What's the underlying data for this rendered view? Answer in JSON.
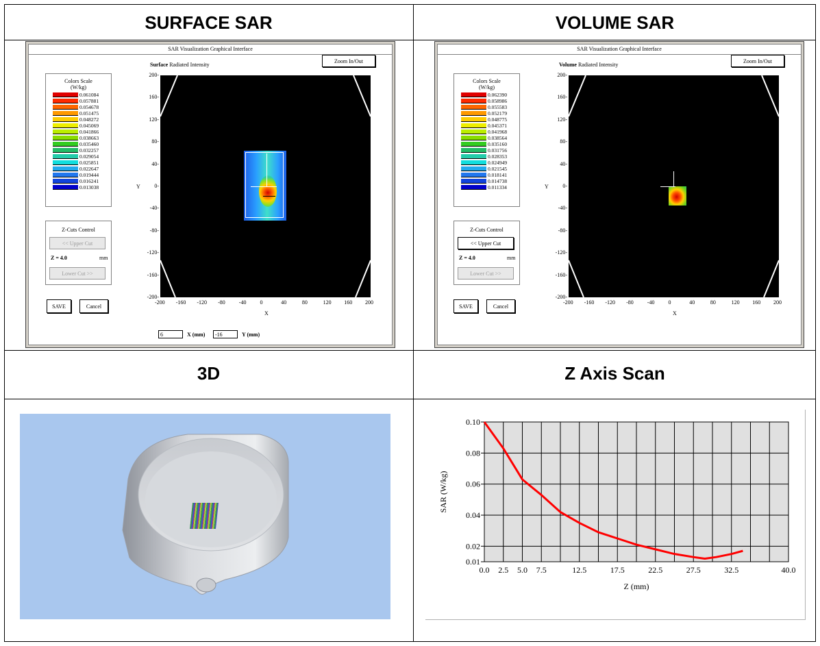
{
  "cells": {
    "surface_title": "SURFACE SAR",
    "volume_title": "VOLUME SAR",
    "three_d_title": "3D",
    "zscan_title": "Z Axis Scan"
  },
  "surface": {
    "window_title": "SAR Visualization Graphical Interface",
    "plot_label_bold": "Surface",
    "plot_label": "Radiated Intensity",
    "zoom_button": "Zoom In/Out",
    "colors_scale_title": "Colors Scale",
    "colors_scale_unit": "(W/kg)",
    "scale_values": [
      "0.061084",
      "0.057881",
      "0.054678",
      "0.051475",
      "0.048272",
      "0.045069",
      "0.041866",
      "0.038663",
      "0.035460",
      "0.032257",
      "0.029054",
      "0.025851",
      "0.022647",
      "0.019444",
      "0.016241",
      "0.013038"
    ],
    "zcuts_title": "Z-Cuts Control",
    "upper_cut": "<< Upper Cut",
    "z_label": "Z = 4.0",
    "z_unit": "mm",
    "lower_cut": "Lower Cut >>",
    "save": "SAVE",
    "cancel": "Cancel",
    "x_value": "6",
    "x_label": "X (mm)",
    "y_value": "-16",
    "y_label": "Y (mm)",
    "x_axis": "X",
    "y_axis": "Y"
  },
  "volume": {
    "window_title": "SAR Visualization Graphical Interface",
    "plot_label_bold": "Volume",
    "plot_label": "Radiated Intensity",
    "zoom_button": "Zoom In/Out",
    "colors_scale_title": "Colors Scale",
    "colors_scale_unit": "(W/kg)",
    "scale_values": [
      "0.062390",
      "0.058986",
      "0.055583",
      "0.052179",
      "0.048775",
      "0.045371",
      "0.041968",
      "0.038564",
      "0.035160",
      "0.031756",
      "0.028353",
      "0.024949",
      "0.021545",
      "0.018141",
      "0.014738",
      "0.011334"
    ],
    "zcuts_title": "Z-Cuts Control",
    "upper_cut": "<< Upper Cut",
    "z_label": "Z = 4.0",
    "z_unit": "mm",
    "lower_cut": "Lower Cut >>",
    "save": "SAVE",
    "cancel": "Cancel",
    "x_axis": "X",
    "y_axis": "Y"
  },
  "axis_ticks": {
    "x": [
      "-200",
      "-160",
      "-120",
      "-80",
      "-40",
      "0",
      "40",
      "80",
      "120",
      "160",
      "200"
    ],
    "y": [
      "200",
      "160",
      "120",
      "80",
      "40",
      "0",
      "-40",
      "-80",
      "-120",
      "-160",
      "-200"
    ]
  },
  "scale_colors": [
    "#e00000",
    "#ff2a00",
    "#ff6600",
    "#ff9900",
    "#ffcc00",
    "#eeee00",
    "#bbee00",
    "#88dd00",
    "#33cc22",
    "#22bb66",
    "#22ccaa",
    "#11dddd",
    "#22aaee",
    "#2277ee",
    "#1144dd",
    "#0000cc"
  ],
  "chart_data": {
    "type": "line",
    "title": "",
    "xlabel": "Z (mm)",
    "ylabel": "SAR (W/kg)",
    "x_ticks": [
      "0.0",
      "2.5",
      "5.0",
      "7.5",
      "12.5",
      "17.5",
      "22.5",
      "27.5",
      "32.5",
      "40.0"
    ],
    "y_ticks": [
      "0.10",
      "0.08",
      "0.06",
      "0.04",
      "0.02",
      "0.01"
    ],
    "xlim": [
      0,
      40
    ],
    "ylim": [
      0.01,
      0.1
    ],
    "grid": true,
    "series": [
      {
        "x": [
          0,
          2.5,
          5,
          7.5,
          10,
          12.5,
          15,
          17.5,
          20,
          22.5,
          25,
          27.5,
          29,
          30.5,
          32.5,
          34
        ],
        "y": [
          0.1,
          0.083,
          0.063,
          0.053,
          0.042,
          0.035,
          0.029,
          0.025,
          0.021,
          0.018,
          0.015,
          0.013,
          0.012,
          0.013,
          0.015,
          0.017
        ]
      }
    ],
    "line_color": "#ff0000"
  }
}
